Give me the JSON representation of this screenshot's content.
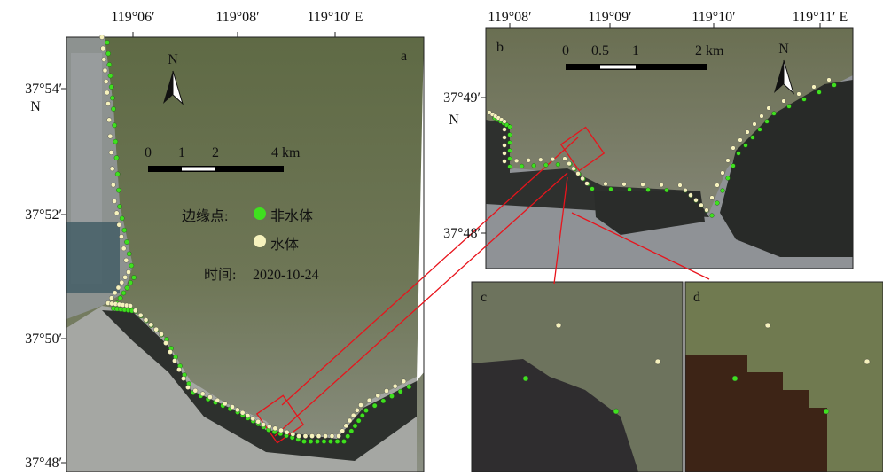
{
  "panels": [
    {
      "label": "a",
      "x_labels": [
        "119°06′",
        "119°08′",
        "119°10′ E"
      ],
      "y_labels": [
        "37°54′",
        "37°52′",
        "37°50′",
        "37°48′"
      ],
      "y_hemisphere": "N",
      "north": "N",
      "scale_labels": [
        "0",
        "1",
        "2",
        "4 km"
      ]
    },
    {
      "label": "b",
      "x_labels": [
        "119°08′",
        "119°09′",
        "119°10′",
        "119°11′ E"
      ],
      "y_labels": [
        "37°49′",
        "37°48′"
      ],
      "y_hemisphere": "N",
      "north": "N",
      "scale_labels": [
        "0",
        "0.5",
        "1",
        "2 km"
      ]
    },
    {
      "label": "c"
    },
    {
      "label": "d"
    }
  ],
  "legend": {
    "title": "边缘点:",
    "items": [
      "非水体",
      "水体"
    ],
    "date_label": "时间:",
    "date": "2020-10-24"
  }
}
